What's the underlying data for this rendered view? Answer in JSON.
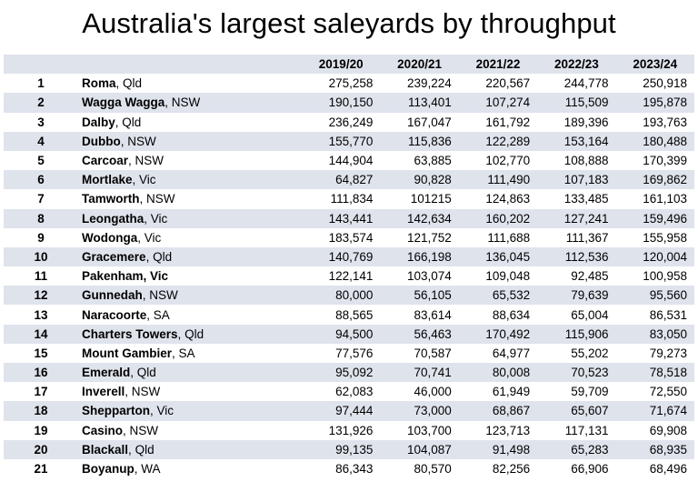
{
  "title": "Australia's largest saleyards by throughput",
  "chart_data": {
    "type": "table",
    "title": "Australia's largest saleyards by throughput",
    "columns": [
      "2019/20",
      "2020/21",
      "2021/22",
      "2022/23",
      "2023/24"
    ],
    "rows": [
      {
        "rank": "1",
        "name": "Roma",
        "state": "Qld",
        "values": [
          "275,258",
          "239,224",
          "220,567",
          "244,778",
          "250,918"
        ]
      },
      {
        "rank": "2",
        "name": "Wagga Wagga",
        "state": "NSW",
        "values": [
          "190,150",
          "113,401",
          "107,274",
          "115,509",
          "195,878"
        ]
      },
      {
        "rank": "3",
        "name": "Dalby",
        "state": "Qld",
        "values": [
          "236,249",
          "167,047",
          "161,792",
          "189,396",
          "193,763"
        ]
      },
      {
        "rank": "4",
        "name": "Dubbo",
        "state": "NSW",
        "values": [
          "155,770",
          "115,836",
          "122,289",
          "153,164",
          "180,488"
        ]
      },
      {
        "rank": "5",
        "name": "Carcoar",
        "state": "NSW",
        "values": [
          "144,904",
          "63,885",
          "102,770",
          "108,888",
          "170,399"
        ]
      },
      {
        "rank": "6",
        "name": "Mortlake",
        "state": "Vic",
        "values": [
          "64,827",
          "90,828",
          "111,490",
          "107,183",
          "169,862"
        ]
      },
      {
        "rank": "7",
        "name": "Tamworth",
        "state": "NSW",
        "values": [
          "111,834",
          "101215",
          "124,863",
          "133,485",
          "161,103"
        ]
      },
      {
        "rank": "8",
        "name": "Leongatha",
        "state": "Vic",
        "values": [
          "143,441",
          "142,634",
          "160,202",
          "127,241",
          "159,496"
        ]
      },
      {
        "rank": "9",
        "name": "Wodonga",
        "state": "Vic",
        "values": [
          "183,574",
          "121,752",
          "111,688",
          "111,367",
          "155,958"
        ]
      },
      {
        "rank": "10",
        "name": "Gracemere",
        "state": "Qld",
        "values": [
          "140,769",
          "166,198",
          "136,045",
          "112,536",
          "120,004"
        ]
      },
      {
        "rank": "11",
        "name": "Pakenham, Vic",
        "state": "",
        "values": [
          "122,141",
          "103,074",
          "109,048",
          "92,485",
          "100,958"
        ]
      },
      {
        "rank": "12",
        "name": "Gunnedah",
        "state": "NSW",
        "values": [
          "80,000",
          "56,105",
          "65,532",
          "79,639",
          "95,560"
        ]
      },
      {
        "rank": "13",
        "name": "Naracoorte",
        "state": "SA",
        "values": [
          "88,565",
          "83,614",
          "88,634",
          "65,004",
          "86,531"
        ]
      },
      {
        "rank": "14",
        "name": "Charters Towers",
        "state": "Qld",
        "values": [
          "94,500",
          "56,463",
          "170,492",
          "115,906",
          "83,050"
        ]
      },
      {
        "rank": "15",
        "name": "Mount Gambier",
        "state": "SA",
        "values": [
          "77,576",
          "70,587",
          "64,977",
          "55,202",
          "79,273"
        ]
      },
      {
        "rank": "16",
        "name": "Emerald",
        "state": "Qld",
        "values": [
          "95,092",
          "70,741",
          "80,008",
          "70,523",
          "78,518"
        ]
      },
      {
        "rank": "17",
        "name": "Inverell",
        "state": "NSW",
        "values": [
          "62,083",
          "46,000",
          "61,949",
          "59,709",
          "72,550"
        ]
      },
      {
        "rank": "18",
        "name": "Shepparton",
        "state": "Vic",
        "values": [
          "97,444",
          "73,000",
          "68,867",
          "65,607",
          "71,674"
        ]
      },
      {
        "rank": "19",
        "name": "Casino",
        "state": "NSW",
        "values": [
          "131,926",
          "103,700",
          "123,713",
          "117,131",
          "69,908"
        ]
      },
      {
        "rank": "20",
        "name": "Blackall",
        "state": "Qld",
        "values": [
          "99,135",
          "104,087",
          "91,498",
          "65,283",
          "68,935"
        ]
      },
      {
        "rank": "21",
        "name": "Boyanup",
        "state": "WA",
        "values": [
          "86,343",
          "80,570",
          "82,256",
          "66,906",
          "68,496"
        ]
      }
    ]
  },
  "style": {
    "header_bg": "#dfe3ec",
    "stripe_bg": "#dfe3ec"
  }
}
